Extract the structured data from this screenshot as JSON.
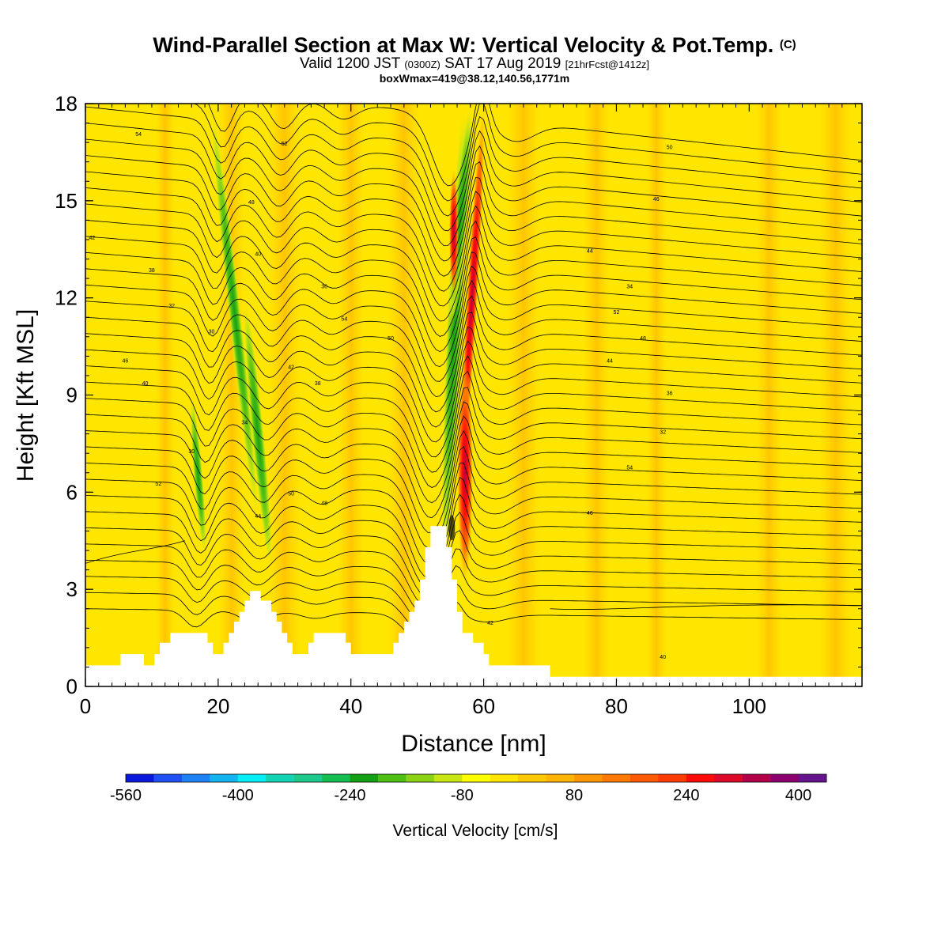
{
  "header": {
    "title_main": "Wind-Parallel Section at Max W: Vertical Velocity & Pot.Temp.",
    "title_mark": "(C)",
    "valid_prefix": "Valid 1200 JST",
    "valid_utc": "(0300Z)",
    "valid_date": "SAT 17 Aug 2019",
    "valid_fcst": "[21hrFcst@1412z]",
    "box_info": "boxWmax=419@38.12,140.56,1771m"
  },
  "colors": {
    "background_field": "#ffe600",
    "terrain": "#ffffff",
    "contour": "#000000"
  },
  "chart_data": {
    "type": "heatmap",
    "xlabel": "Distance [nm]",
    "ylabel": "Height [Kft MSL]",
    "xlim": [
      0,
      117
    ],
    "ylim": [
      0,
      18
    ],
    "x_ticks": [
      0,
      20,
      40,
      60,
      80,
      100
    ],
    "y_ticks": [
      0,
      3,
      6,
      9,
      12,
      15,
      18
    ],
    "colorbar": {
      "title": "Vertical Velocity [cm/s]",
      "tick_labels": [
        "-560",
        "-400",
        "-240",
        "-80",
        "80",
        "240",
        "400"
      ],
      "tick_values": [
        -560,
        -400,
        -240,
        -80,
        80,
        240,
        400
      ],
      "colors": [
        "#0a18dc",
        "#1e50f5",
        "#1e82f5",
        "#14b4f0",
        "#00f0f5",
        "#14d2b4",
        "#1ec88c",
        "#14be50",
        "#14a014",
        "#50be14",
        "#8cd214",
        "#c8e614",
        "#ffff00",
        "#ffe600",
        "#ffc800",
        "#ffb400",
        "#ff9600",
        "#ff7800",
        "#ff5a00",
        "#ff3c00",
        "#ff0a0a",
        "#dc0a28",
        "#b4004b",
        "#8c006e",
        "#64148c"
      ]
    },
    "terrain_profile": [
      [
        0,
        0.65
      ],
      [
        5.3,
        0.65
      ],
      [
        5.3,
        1
      ],
      [
        8.8,
        1
      ],
      [
        8.8,
        0.65
      ],
      [
        10.4,
        0.65
      ],
      [
        10.4,
        1
      ],
      [
        11.2,
        1
      ],
      [
        11.2,
        1.35
      ],
      [
        12.8,
        1.35
      ],
      [
        12.8,
        1.65
      ],
      [
        18.4,
        1.65
      ],
      [
        18.4,
        1.35
      ],
      [
        19.2,
        1.35
      ],
      [
        19.2,
        1
      ],
      [
        20.8,
        1
      ],
      [
        20.8,
        1.35
      ],
      [
        21.6,
        1.35
      ],
      [
        21.6,
        1.65
      ],
      [
        22.4,
        1.65
      ],
      [
        22.4,
        2
      ],
      [
        23.2,
        2
      ],
      [
        23.2,
        2.3
      ],
      [
        24,
        2.3
      ],
      [
        24,
        2.65
      ],
      [
        24.8,
        2.65
      ],
      [
        24.8,
        2.95
      ],
      [
        26.4,
        2.95
      ],
      [
        26.4,
        2.65
      ],
      [
        28.0,
        2.65
      ],
      [
        28.0,
        2.3
      ],
      [
        28.8,
        2.3
      ],
      [
        28.8,
        2
      ],
      [
        29.6,
        2
      ],
      [
        29.6,
        1.65
      ],
      [
        30.4,
        1.65
      ],
      [
        30.4,
        1.35
      ],
      [
        31.2,
        1.35
      ],
      [
        31.2,
        1
      ],
      [
        33.6,
        1
      ],
      [
        33.6,
        1.35
      ],
      [
        34.4,
        1.35
      ],
      [
        34.4,
        1.65
      ],
      [
        39.2,
        1.65
      ],
      [
        39.2,
        1.35
      ],
      [
        40.0,
        1.35
      ],
      [
        40.0,
        1
      ],
      [
        46.4,
        1
      ],
      [
        46.4,
        1.35
      ],
      [
        47.2,
        1.35
      ],
      [
        47.2,
        1.65
      ],
      [
        48.0,
        1.65
      ],
      [
        48.0,
        2
      ],
      [
        48.8,
        2
      ],
      [
        48.8,
        2.3
      ],
      [
        49.6,
        2.3
      ],
      [
        49.6,
        2.65
      ],
      [
        50.4,
        2.65
      ],
      [
        50.4,
        3.3
      ],
      [
        51.2,
        3.3
      ],
      [
        51.2,
        4.3
      ],
      [
        52.0,
        4.3
      ],
      [
        52.0,
        4.95
      ],
      [
        54.4,
        4.95
      ],
      [
        54.4,
        4.3
      ],
      [
        55.2,
        4.3
      ],
      [
        55.2,
        3.3
      ],
      [
        56.0,
        3.3
      ],
      [
        56.0,
        2.3
      ],
      [
        56.8,
        2.3
      ],
      [
        56.8,
        1.65
      ],
      [
        58.4,
        1.65
      ],
      [
        58.4,
        1.35
      ],
      [
        60.0,
        1.35
      ],
      [
        60.0,
        1
      ],
      [
        60.8,
        1
      ],
      [
        60.8,
        0.65
      ],
      [
        70.0,
        0.65
      ],
      [
        70.0,
        0.3
      ],
      [
        117,
        0.3
      ]
    ],
    "theta_contour_labels": [
      "30",
      "32",
      "34",
      "36",
      "38",
      "40",
      "42",
      "44",
      "46",
      "48",
      "50",
      "52",
      "54"
    ]
  }
}
